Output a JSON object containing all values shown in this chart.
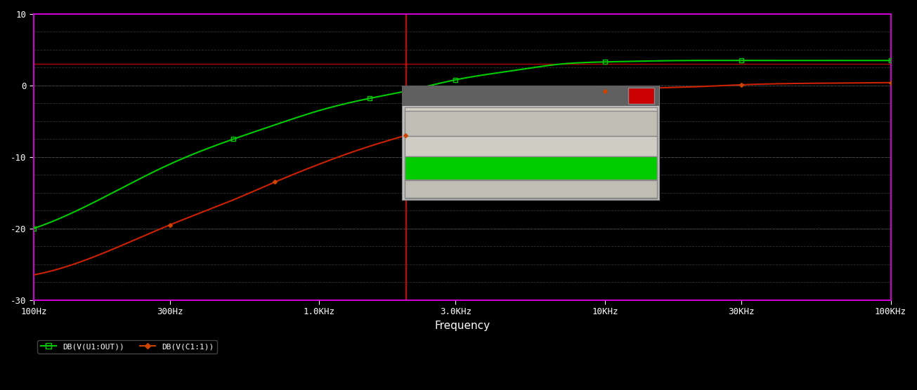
{
  "bg_color": "#000000",
  "plot_bg_color": "#000000",
  "grid_color": "#444444",
  "grid_linestyle": "--",
  "grid_linewidth": 0.7,
  "border_color": "#cc00cc",
  "xmin": 100,
  "xmax": 100000,
  "ymin": -30,
  "ymax": 10,
  "yticks": [
    -30,
    -20,
    -10,
    0,
    10
  ],
  "xtick_labels": [
    "100Hz",
    "300Hz",
    "1.0KHz",
    "3.0KHz",
    "10KHz",
    "30KHz",
    "100KHz"
  ],
  "xtick_values": [
    100,
    300,
    1000,
    3000,
    10000,
    30000,
    100000
  ],
  "xlabel": "Frequency",
  "xlabel_color": "#ffffff",
  "xlabel_fontsize": 11,
  "tick_color": "#ffffff",
  "tick_fontsize": 9,
  "cursor_x": 2010.6,
  "cursor_color": "#ff0000",
  "cursor_linewidth": 1.0,
  "green_line_color": "#00cc00",
  "green_marker_color": "#00cc00",
  "green_marker": "s",
  "green_marker_size": 4,
  "green_label": "DB(V(U1:OUT))",
  "red_line_color": "#cc2200",
  "red_marker_color": "#cc4400",
  "red_marker": "D",
  "red_marker_size": 3,
  "red_label": "DB(V(C1:1))",
  "flat_line_color": "#cc0000",
  "flat_line_y": 3.0,
  "figsize": [
    13.05,
    5.56
  ],
  "dpi": 100,
  "legend_fontsize": 8,
  "legend_text_color": "#ffffff"
}
